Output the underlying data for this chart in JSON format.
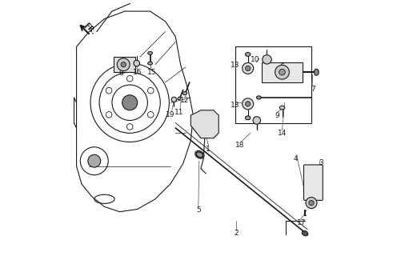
{
  "bg_color": "#ffffff",
  "line_color": "#1a1a1a",
  "fig_width": 5.02,
  "fig_height": 3.2,
  "dpi": 100
}
